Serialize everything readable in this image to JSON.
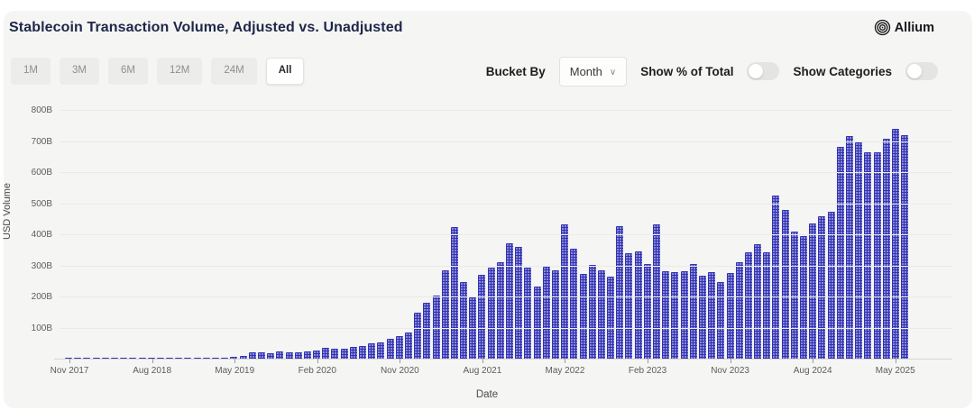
{
  "header": {
    "title": "Stablecoin Transaction Volume, Adjusted vs. Unadjusted",
    "brand": "Allium"
  },
  "toolbar": {
    "range_buttons": [
      "1M",
      "3M",
      "6M",
      "12M",
      "24M",
      "All"
    ],
    "active_range": "All",
    "bucket_by_label": "Bucket By",
    "bucket_by_value": "Month",
    "bucket_chevron": "⌄",
    "show_pct_label": "Show % of Total",
    "show_pct_on": false,
    "show_categories_label": "Show Categories",
    "show_categories_on": false
  },
  "chart_data": {
    "type": "bar",
    "title": "Stablecoin Transaction Volume, Adjusted vs. Unadjusted",
    "xlabel": "Date",
    "ylabel": "USD Volume",
    "unit": "B (billions USD)",
    "ylim": [
      0,
      800
    ],
    "grid": true,
    "legend_position": "none",
    "bar_color": "#3232b4",
    "y_ticks": [
      {
        "value": 100,
        "label": "100B"
      },
      {
        "value": 200,
        "label": "200B"
      },
      {
        "value": 300,
        "label": "300B"
      },
      {
        "value": 400,
        "label": "400B"
      },
      {
        "value": 500,
        "label": "500B"
      },
      {
        "value": 600,
        "label": "600B"
      },
      {
        "value": 700,
        "label": "700B"
      },
      {
        "value": 800,
        "label": "800B"
      }
    ],
    "x_tick_labels": [
      "Nov 2017",
      "Aug 2018",
      "May 2019",
      "Feb 2020",
      "Nov 2020",
      "Aug 2021",
      "May 2022",
      "Feb 2023",
      "Nov 2023",
      "Aug 2024",
      "May 2025"
    ],
    "x_tick_indices": [
      0,
      9,
      18,
      27,
      36,
      45,
      54,
      63,
      72,
      81,
      90
    ],
    "x_start_month": "Nov 2017",
    "x_end_month": "Jun 2025",
    "bucket": "Month",
    "values_unit": "B",
    "values": [
      0.5,
      0.6,
      0.7,
      0.8,
      0.9,
      1,
      1,
      1.1,
      1.2,
      1.4,
      1.5,
      1.7,
      1.9,
      2.1,
      2.3,
      2.5,
      3,
      4,
      5,
      9,
      21,
      19,
      17,
      23,
      20,
      20,
      22,
      26,
      34,
      31,
      32,
      39,
      41,
      50,
      53,
      65,
      72,
      85,
      148,
      181,
      202,
      283,
      424,
      246,
      196,
      270,
      294,
      309,
      371,
      360,
      294,
      231,
      297,
      283,
      432,
      355,
      273,
      303,
      283,
      265,
      427,
      338,
      345,
      304,
      432,
      280,
      278,
      280,
      304,
      268,
      278,
      246,
      275,
      309,
      342,
      367,
      342,
      525,
      477,
      410,
      395,
      435,
      458,
      472,
      680,
      717,
      695,
      665,
      665,
      707,
      738,
      718
    ]
  }
}
